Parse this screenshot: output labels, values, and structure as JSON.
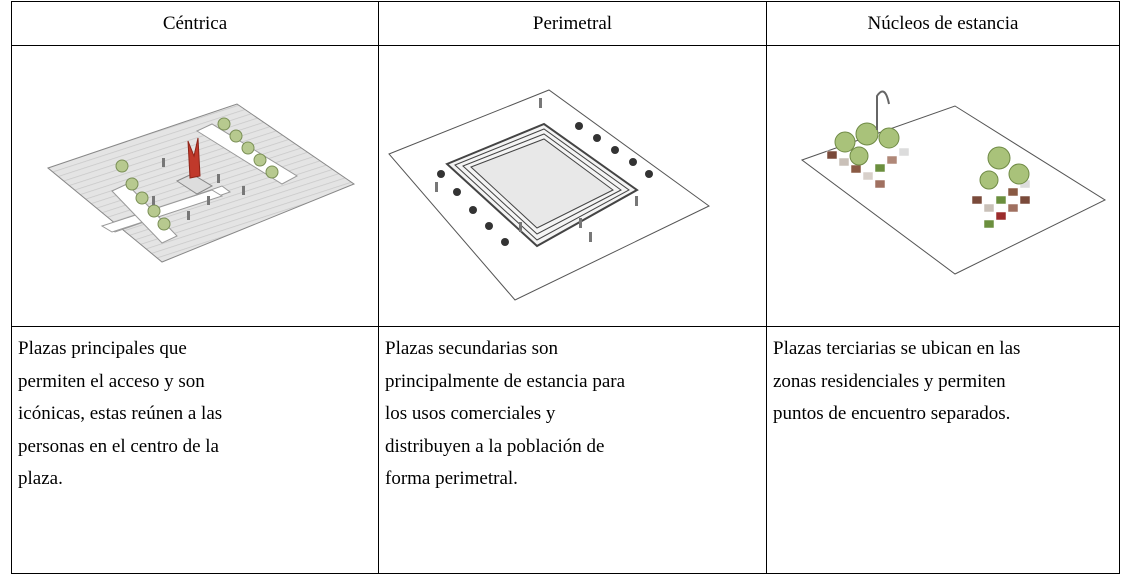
{
  "table": {
    "header": [
      "Céntrica",
      "Perimetral",
      "Núcleos de estancia"
    ],
    "descriptions": [
      [
        "Plazas principales que",
        "permiten el acceso y son",
        "icónicas, estas reúnen a las",
        "personas en el centro de la",
        "plaza."
      ],
      [
        "Plazas secundarias son",
        "principalmente de estancia para",
        "los usos comerciales y",
        "distribuyen a la población de",
        "forma perimetral."
      ],
      [
        "Plazas terciarias se ubican en las",
        "zonas residenciales y permiten",
        "puntos de encuentro separados."
      ]
    ]
  }
}
